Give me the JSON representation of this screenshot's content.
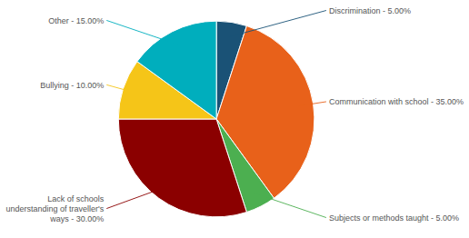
{
  "chart_data": {
    "type": "pie",
    "categories": [
      "Discrimination - 5.00%",
      "Communication with school - 35.00%",
      "Subjects or methods taught - 5.00%",
      "Lack of schools\nunderstanding of traveller's\nways - 30.00%",
      "Bullying - 10.00%",
      "Other - 15.00%"
    ],
    "values": [
      5,
      35,
      5,
      30,
      10,
      15
    ],
    "colors": [
      "#1A5276",
      "#E8611A",
      "#4CAF50",
      "#8B0000",
      "#F5C518",
      "#00AEBD"
    ]
  }
}
